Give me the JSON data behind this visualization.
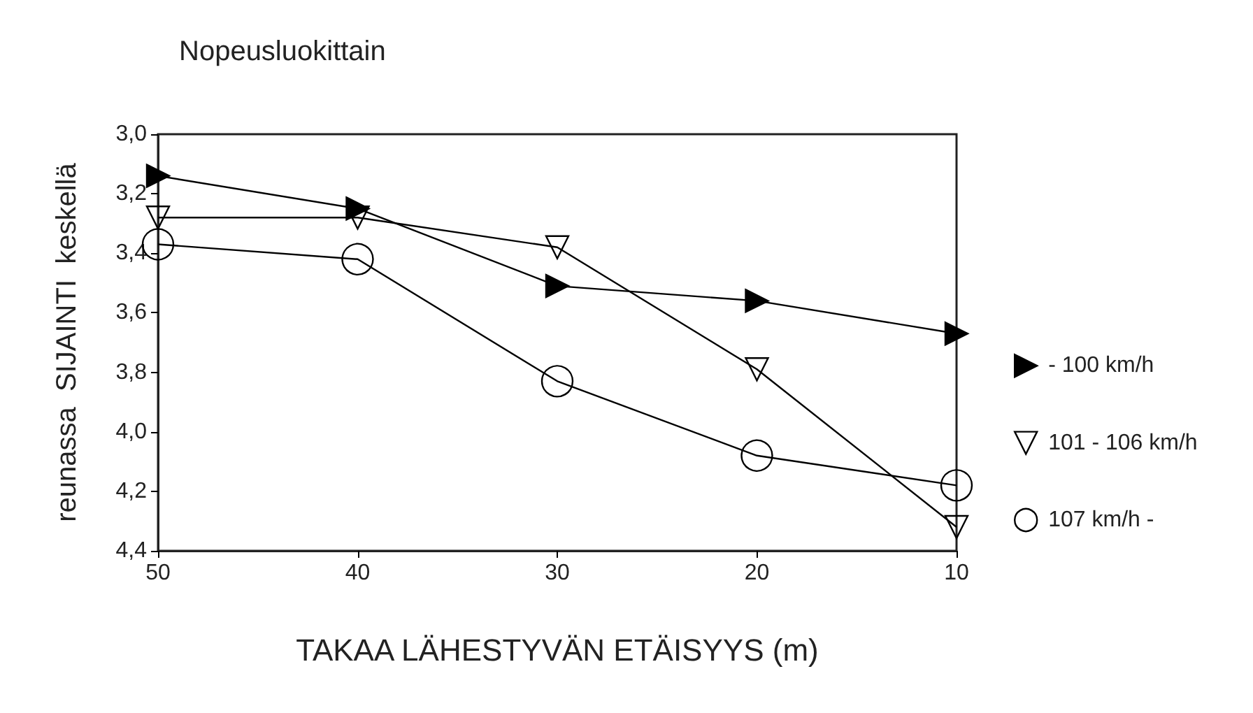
{
  "chart_data": {
    "type": "line",
    "title": "Nopeusluokittain",
    "xlabel": "TAKAA LÄHESTYVÄN ETÄISYYS (m)",
    "ylabel": "reunassa  SIJAINTI  keskellä",
    "x": [
      50,
      40,
      30,
      20,
      10
    ],
    "series": [
      {
        "name": "- 100 km/h",
        "color": "#000000",
        "marker": "triangle-right",
        "values": [
          3.14,
          3.25,
          3.51,
          3.56,
          3.67
        ]
      },
      {
        "name": "101 - 106 km/h",
        "color": "#000000",
        "marker": "triangle-down",
        "values": [
          3.28,
          3.28,
          3.38,
          3.79,
          4.32
        ]
      },
      {
        "name": "107 km/h -",
        "color": "#000000",
        "marker": "circle",
        "values": [
          3.37,
          3.42,
          3.83,
          4.08,
          4.18
        ]
      }
    ],
    "xlim": [
      50,
      10
    ],
    "xticks": [
      50,
      40,
      30,
      20,
      10
    ],
    "ylim": [
      4.4,
      3.0
    ],
    "yticks": [
      {
        "value": 3.0,
        "label": "3,0"
      },
      {
        "value": 3.2,
        "label": "3,2"
      },
      {
        "value": 3.4,
        "label": "3,4"
      },
      {
        "value": 3.6,
        "label": "3,6"
      },
      {
        "value": 3.8,
        "label": "3,8"
      },
      {
        "value": 4.0,
        "label": "4,0"
      },
      {
        "value": 4.2,
        "label": "4,2"
      },
      {
        "value": 4.4,
        "label": "4,4"
      }
    ],
    "grid": false,
    "legend": "right",
    "line_style": "solid"
  }
}
